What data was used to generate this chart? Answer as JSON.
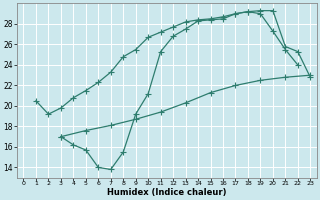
{
  "xlabel": "Humidex (Indice chaleur)",
  "bg_color": "#cce8ed",
  "line_color": "#2e7d6e",
  "grid_color": "#ffffff",
  "xlim": [
    -0.5,
    23.5
  ],
  "ylim": [
    13,
    30
  ],
  "xticks": [
    0,
    1,
    2,
    3,
    4,
    5,
    6,
    7,
    8,
    9,
    10,
    11,
    12,
    13,
    14,
    15,
    16,
    17,
    18,
    19,
    20,
    21,
    22,
    23
  ],
  "yticks": [
    14,
    16,
    18,
    20,
    22,
    24,
    26,
    28
  ],
  "line1_x": [
    1,
    2,
    3,
    4,
    5,
    6,
    7,
    8,
    9,
    10,
    11,
    12,
    13,
    14,
    15,
    16,
    17,
    18,
    19,
    20,
    21,
    22,
    23
  ],
  "line1_y": [
    20.5,
    19.2,
    19.8,
    20.8,
    21.5,
    22.3,
    23.3,
    24.8,
    25.5,
    26.7,
    27.2,
    27.7,
    28.2,
    28.4,
    28.5,
    28.7,
    29.0,
    29.2,
    29.3,
    29.3,
    25.8,
    25.3,
    22.8
  ],
  "line2_x": [
    3,
    4,
    5,
    6,
    7,
    8,
    9,
    10,
    11,
    12,
    13,
    14,
    15,
    16,
    17,
    18,
    19,
    20,
    21,
    22
  ],
  "line2_y": [
    17.0,
    16.2,
    15.7,
    14.0,
    13.8,
    15.5,
    19.2,
    21.2,
    25.3,
    26.8,
    27.5,
    28.3,
    28.4,
    28.5,
    29.0,
    29.2,
    29.0,
    27.3,
    25.5,
    24.0
  ],
  "line3_x": [
    3,
    5,
    7,
    9,
    11,
    13,
    15,
    17,
    19,
    21,
    23
  ],
  "line3_y": [
    17.0,
    17.6,
    18.1,
    18.7,
    19.4,
    20.3,
    21.3,
    22.0,
    22.5,
    22.8,
    23.0
  ]
}
